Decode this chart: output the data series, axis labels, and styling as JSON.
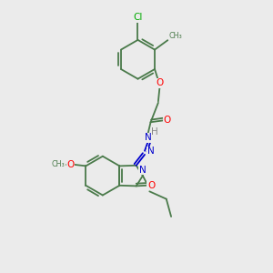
{
  "background_color": "#ebebeb",
  "bond_color": "#4a7a4a",
  "atom_colors": {
    "O": "#ff0000",
    "N": "#0000cc",
    "Cl": "#00aa00",
    "H": "#888888",
    "C": "#333333"
  },
  "figsize": [
    3.0,
    3.0
  ],
  "dpi": 100
}
